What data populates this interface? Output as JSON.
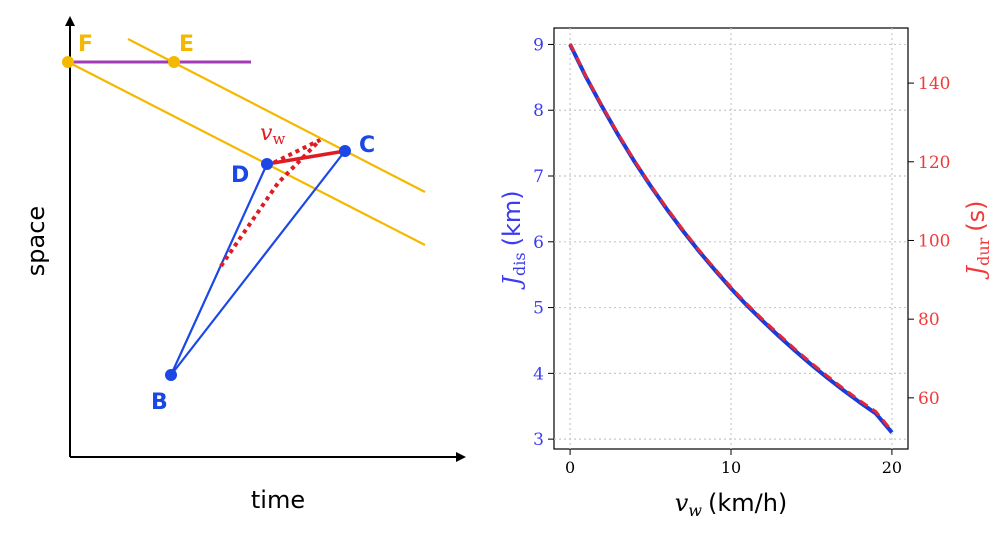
{
  "diagram": {
    "xlabel": "time",
    "ylabel": "space",
    "points": {
      "F": {
        "label": "F",
        "color": "#f5b800"
      },
      "E": {
        "label": "E",
        "color": "#f5b800"
      },
      "B": {
        "label": "B",
        "color": "#1a47e6"
      },
      "C": {
        "label": "C",
        "color": "#1a47e6"
      },
      "D": {
        "label": "D",
        "color": "#1a47e6"
      }
    },
    "vw_label": "v",
    "vw_sub": "w",
    "colors": {
      "yellow": "#f5b800",
      "purple": "#a23cb4",
      "blue": "#1a47e6",
      "red": "#e01b24"
    }
  },
  "chart_data": {
    "type": "line",
    "title": "",
    "xlabel_var": "v",
    "xlabel_sub": "w",
    "xlabel_unit": "(km/h)",
    "x": [
      0,
      1,
      2,
      3,
      4,
      5,
      6,
      7,
      8,
      9,
      10,
      11,
      12,
      13,
      14,
      15,
      16,
      17,
      18,
      19,
      20
    ],
    "xlim": [
      -1,
      21
    ],
    "xticks": [
      "0",
      "10",
      "20"
    ],
    "grid": true,
    "left_axis": {
      "label_var": "J",
      "label_sub": "dis",
      "label_unit": "(km)",
      "color": "#3b3bf2",
      "ylim": [
        2.85,
        9.25
      ],
      "ticks": [
        "3",
        "4",
        "5",
        "6",
        "7",
        "8",
        "9"
      ]
    },
    "right_axis": {
      "label_var": "J",
      "label_sub": "dur",
      "label_unit": "(s)",
      "color": "#f03a3a",
      "ylim": [
        47,
        154
      ],
      "ticks": [
        "60",
        "80",
        "100",
        "120",
        "140"
      ]
    },
    "series": [
      {
        "name": "J_dis",
        "axis": "left",
        "color": "#1a3bd9",
        "style": "solid",
        "values": [
          9.0,
          8.5,
          8.05,
          7.62,
          7.22,
          6.85,
          6.5,
          6.17,
          5.86,
          5.57,
          5.29,
          5.03,
          4.79,
          4.56,
          4.34,
          4.13,
          3.93,
          3.74,
          3.56,
          3.39,
          3.1
        ]
      },
      {
        "name": "J_dur",
        "axis": "right",
        "color": "#e0283c",
        "style": "dashed",
        "values": [
          150.0,
          141.6,
          134.1,
          127.0,
          120.3,
          114.1,
          108.3,
          102.8,
          97.6,
          92.8,
          88.1,
          83.8,
          79.8,
          76.0,
          72.3,
          68.8,
          65.5,
          62.3,
          59.3,
          56.5,
          51.6
        ]
      }
    ]
  }
}
